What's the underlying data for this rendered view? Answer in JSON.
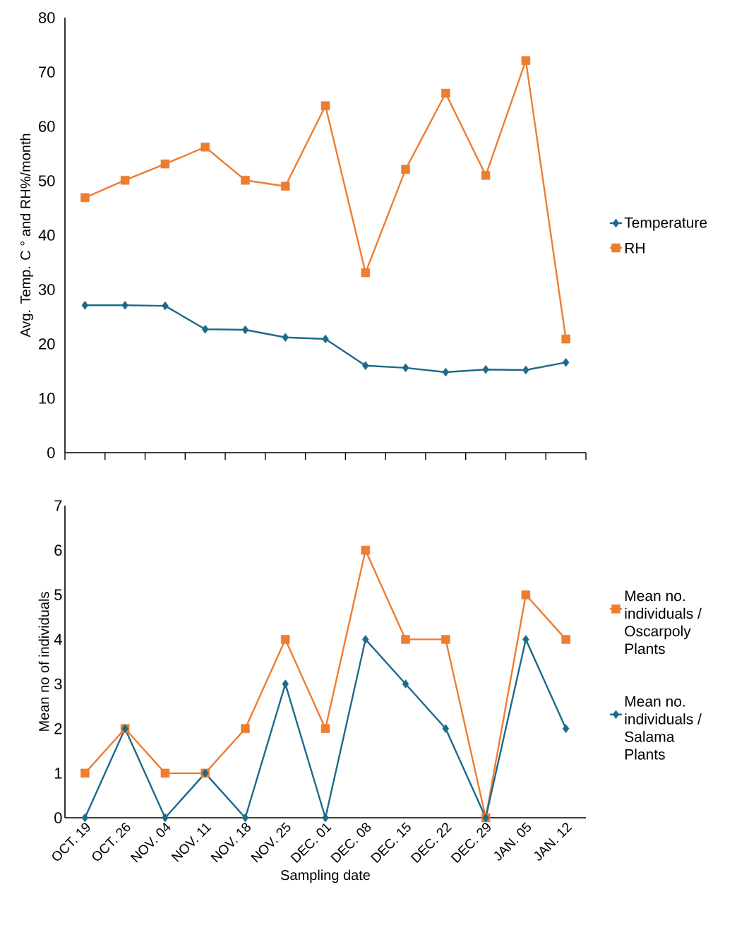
{
  "chart_data": [
    {
      "type": "line",
      "ylabel": "Avg. Temp. C ° and RH%/month",
      "categories": [
        null,
        null,
        null,
        null,
        null,
        null,
        null,
        null,
        null,
        null,
        null,
        null,
        null
      ],
      "tick_labels": "y",
      "ylim": [
        0,
        80
      ],
      "yticks": [
        0,
        10,
        20,
        30,
        40,
        50,
        60,
        70,
        80
      ],
      "legend": "right",
      "grid": false,
      "series": [
        {
          "name": "Temperature",
          "color": "#1d6a8a",
          "marker": "diamond",
          "values": [
            27.1,
            27.1,
            27.0,
            22.7,
            22.6,
            21.2,
            20.9,
            16.0,
            15.6,
            14.8,
            15.3,
            15.2,
            16.6
          ]
        },
        {
          "name": "RH",
          "color": "#ed7d31",
          "marker": "square",
          "values": [
            46.9,
            50.1,
            53.1,
            56.2,
            50.1,
            49.0,
            63.8,
            33.1,
            52.1,
            66.1,
            51.0,
            72.1,
            20.9
          ]
        }
      ]
    },
    {
      "type": "line",
      "xlabel": "Sampling date",
      "ylabel": "Mean no of individuals",
      "categories": [
        "OCT. 19",
        "OCT. 26",
        "NOV. 04",
        "NOV. 11",
        "NOV. 18",
        "NOV. 25",
        "DEC. 01",
        "DEC. 08",
        "DEC. 15",
        "DEC. 22",
        "DEC. 29",
        "JAN. 05",
        "JAN. 12"
      ],
      "ylim": [
        0,
        7
      ],
      "yticks": [
        0,
        1,
        2,
        3,
        4,
        5,
        6,
        7
      ],
      "legend": "right",
      "grid": false,
      "series": [
        {
          "name": "Mean no. individuals / Oscarpoly Plants",
          "color": "#ed7d31",
          "marker": "square",
          "values": [
            1,
            2,
            1,
            1,
            2,
            4,
            2,
            6,
            4,
            4,
            0,
            5,
            4
          ]
        },
        {
          "name": "Mean no. individuals / Salama Plants",
          "color": "#1d6a8a",
          "marker": "diamond",
          "values": [
            0,
            2,
            0,
            1,
            0,
            3,
            0,
            4,
            3,
            2,
            0,
            4,
            2
          ]
        }
      ]
    }
  ]
}
